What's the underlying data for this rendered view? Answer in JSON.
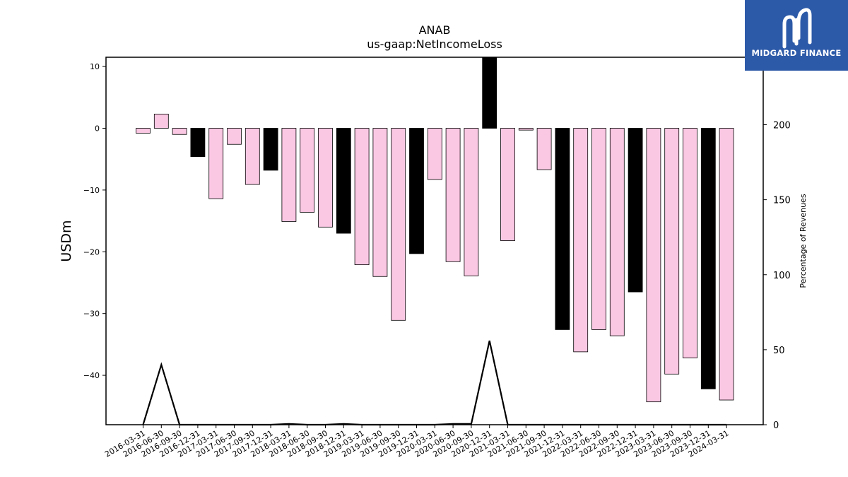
{
  "brand": {
    "name": "MIDGARD FINANCE",
    "color": "#2d5aa8"
  },
  "chart_data": {
    "type": "bar",
    "title": "ANAB",
    "subtitle": "us-gaap:NetIncomeLoss",
    "ylabel": "USDm",
    "y2label": "Percentage of Revenues",
    "ylim": [
      -48,
      11.5
    ],
    "y2lim": [
      0,
      245
    ],
    "yticks": [
      10,
      0,
      -10,
      -20,
      -30,
      -40
    ],
    "y2ticks": [
      0,
      50,
      100,
      150,
      200
    ],
    "categories": [
      "2016-03-31",
      "2016-06-30",
      "2016-09-30",
      "2016-12-31",
      "2017-03-31",
      "2017-06-30",
      "2017-09-30",
      "2017-12-31",
      "2018-03-31",
      "2018-06-30",
      "2018-09-30",
      "2018-12-31",
      "2019-03-31",
      "2019-06-30",
      "2019-09-30",
      "2019-12-31",
      "2020-03-31",
      "2020-06-30",
      "2020-09-30",
      "2020-12-31",
      "2021-03-31",
      "2021-06-30",
      "2021-09-30",
      "2021-12-31",
      "2022-03-31",
      "2022-06-30",
      "2022-09-30",
      "2022-12-31",
      "2023-03-31",
      "2023-06-30",
      "2023-09-30",
      "2023-12-31",
      "2024-03-31"
    ],
    "series": [
      {
        "values": [
          -0.8,
          2.3,
          -1.0,
          -4.6,
          -11.4,
          -2.6,
          -9.1,
          -6.8,
          -15.1,
          -13.6,
          -16.0,
          -17.0,
          -22.1,
          -24.0,
          -31.1,
          -20.3,
          -8.3,
          -21.6,
          -23.9,
          11.6,
          -18.2,
          -0.3,
          -6.7,
          -32.6,
          -36.2,
          -32.6,
          -33.6,
          -26.5,
          -44.3,
          -39.8,
          -37.2,
          -42.2,
          -44.0
        ],
        "colors": [
          "#fbc8e4",
          "#fbc8e4",
          "#fbc8e4",
          "#000000",
          "#fbc8e4",
          "#fbc8e4",
          "#fbc8e4",
          "#000000",
          "#fbc8e4",
          "#fbc8e4",
          "#fbc8e4",
          "#000000",
          "#fbc8e4",
          "#fbc8e4",
          "#fbc8e4",
          "#000000",
          "#fbc8e4",
          "#fbc8e4",
          "#fbc8e4",
          "#000000",
          "#fbc8e4",
          "#fbc8e4",
          "#fbc8e4",
          "#000000",
          "#fbc8e4",
          "#fbc8e4",
          "#fbc8e4",
          "#000000",
          "#fbc8e4",
          "#fbc8e4",
          "#fbc8e4",
          "#000000",
          "#fbc8e4"
        ]
      },
      {
        "axis": "right",
        "type": "line",
        "color": "#000000",
        "values": [
          0,
          40,
          0,
          0,
          0,
          0,
          0,
          0,
          0.5,
          0,
          0,
          0.5,
          0,
          0,
          0,
          0,
          0,
          0.5,
          0.5,
          56,
          0,
          0,
          0,
          0,
          0,
          0,
          0,
          0,
          0,
          0,
          0,
          0,
          0
        ]
      }
    ],
    "grid": false
  }
}
